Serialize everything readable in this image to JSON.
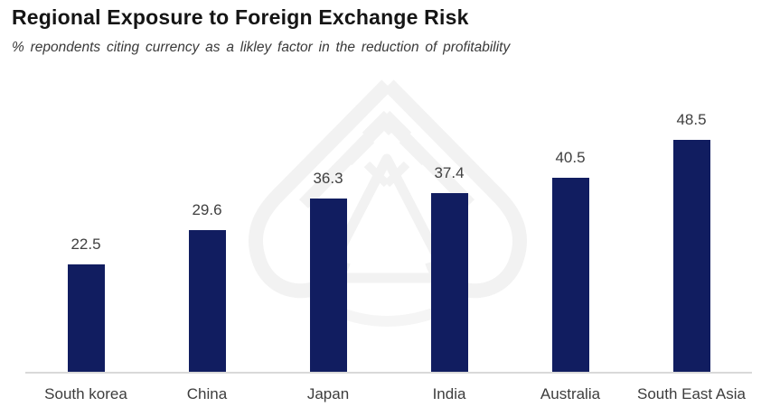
{
  "title": "Regional Exposure to Foreign Exchange Risk",
  "subtitle": "% repondents citing currency as a likley factor in the reduction of profitability",
  "colors": {
    "bar": "#111D60",
    "axis_line": "#D9D9D9",
    "title_text": "#151515",
    "subtitle_text": "#3A3A3A",
    "label_text": "#404040",
    "watermark": "#F2F2F2"
  },
  "chart_data": {
    "type": "bar",
    "title": "Regional Exposure to Foreign Exchange Risk",
    "subtitle": "% repondents citing currency as a likley factor in the reduction of profitability",
    "categories": [
      "South korea",
      "China",
      "Japan",
      "India",
      "Australia",
      "South East Asia"
    ],
    "values": [
      22.5,
      29.6,
      36.3,
      37.4,
      40.5,
      48.5
    ],
    "xlabel": "",
    "ylabel": "",
    "ylim": [
      0,
      60
    ],
    "grid": false,
    "legend": null,
    "data_labels_shown": true,
    "bar_color": "#111D60"
  }
}
